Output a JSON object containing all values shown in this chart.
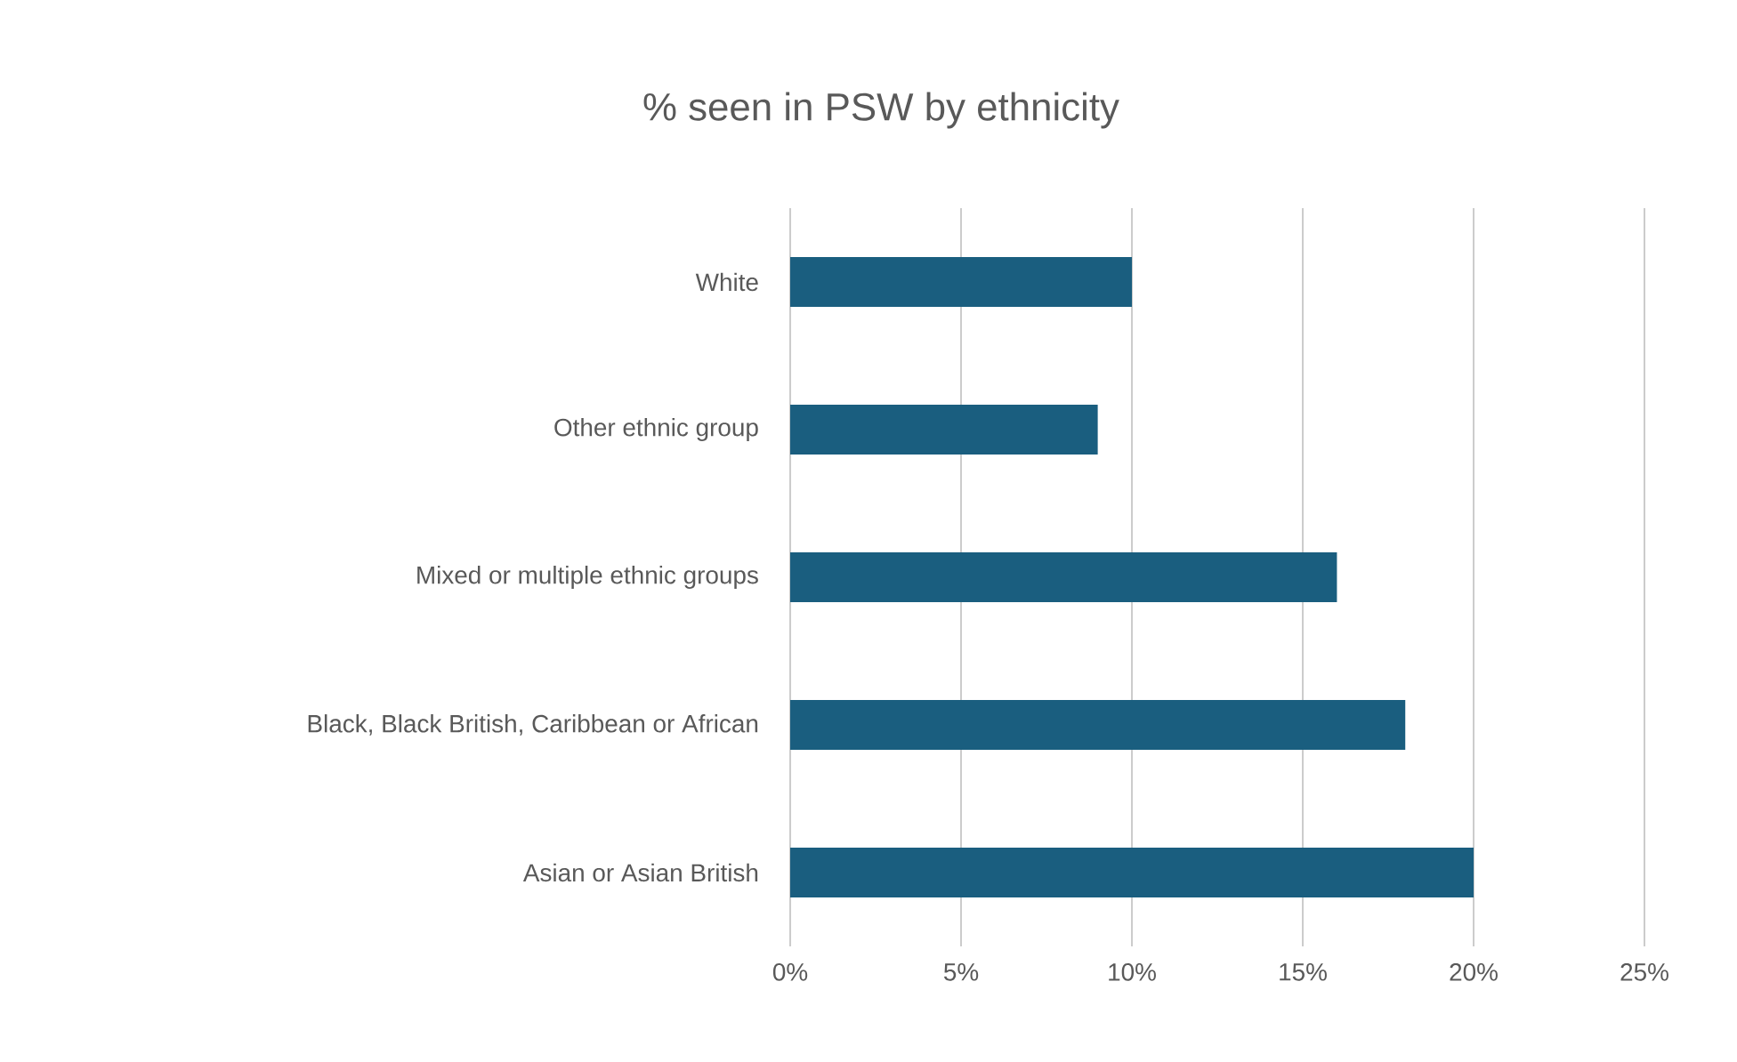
{
  "chart_data": {
    "type": "bar",
    "orientation": "horizontal",
    "title": "% seen in PSW by ethnicity",
    "categories": [
      "White",
      "Other ethnic group",
      "Mixed or multiple ethnic groups",
      "Black, Black British, Caribbean or African",
      "Asian or Asian British"
    ],
    "values": [
      10,
      9,
      16,
      18,
      20
    ],
    "color": "#1a5e7f",
    "xlim": [
      0,
      25
    ],
    "xticks": [
      {
        "value": 0,
        "label": "0%"
      },
      {
        "value": 5,
        "label": "5%"
      },
      {
        "value": 10,
        "label": "10%"
      },
      {
        "value": 15,
        "label": "15%"
      },
      {
        "value": 20,
        "label": "20%"
      },
      {
        "value": 25,
        "label": "25%"
      }
    ],
    "grid": "x"
  }
}
